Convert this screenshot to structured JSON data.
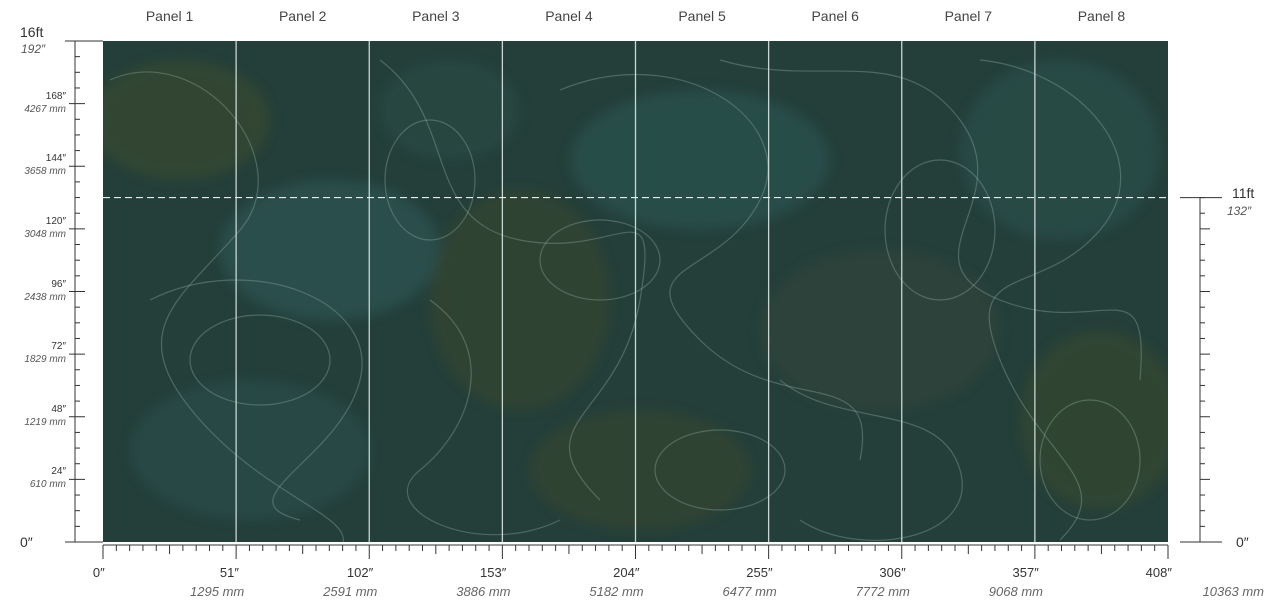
{
  "panels": [
    "Panel 1",
    "Panel 2",
    "Panel 3",
    "Panel 4",
    "Panel 5",
    "Panel 6",
    "Panel 7",
    "Panel 8"
  ],
  "left_ruler": {
    "top_ft": "16ft",
    "top_in": "192″",
    "zero": "0″",
    "ticks": [
      {
        "in": "168″",
        "mm": "4267 mm"
      },
      {
        "in": "144″",
        "mm": "3658 mm"
      },
      {
        "in": "120″",
        "mm": "3048 mm"
      },
      {
        "in": "96″",
        "mm": "2438 mm"
      },
      {
        "in": "72″",
        "mm": "1829 mm"
      },
      {
        "in": "48″",
        "mm": "1219 mm"
      },
      {
        "in": "24″",
        "mm": "610 mm"
      }
    ]
  },
  "right_ruler": {
    "top_ft": "11ft",
    "top_in": "132″",
    "zero": "0″"
  },
  "bottom_ruler": [
    {
      "in": "0″",
      "mm": ""
    },
    {
      "in": "51″",
      "mm": "1295 mm"
    },
    {
      "in": "102″",
      "mm": "2591 mm"
    },
    {
      "in": "153″",
      "mm": "3886 mm"
    },
    {
      "in": "204″",
      "mm": "5182 mm"
    },
    {
      "in": "255″",
      "mm": "6477 mm"
    },
    {
      "in": "306″",
      "mm": "7772 mm"
    },
    {
      "in": "357″",
      "mm": "9068 mm"
    },
    {
      "in": "408″",
      "mm": "10363 mm"
    }
  ],
  "wall": {
    "width_in": 408,
    "height_in": 192,
    "line_height_in": 132
  },
  "colors": {
    "base": "#243f3a",
    "teal": "#2f5a58",
    "olive": "#3b4a2c",
    "line": "#9fb8b0"
  }
}
